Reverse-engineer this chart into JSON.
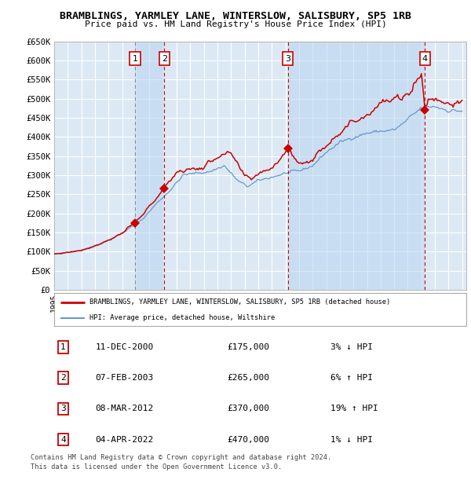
{
  "title": "BRAMBLINGS, YARMLEY LANE, WINTERSLOW, SALISBURY, SP5 1RB",
  "subtitle": "Price paid vs. HM Land Registry's House Price Index (HPI)",
  "ylim": [
    0,
    650000
  ],
  "yticks": [
    0,
    50000,
    100000,
    150000,
    200000,
    250000,
    300000,
    350000,
    400000,
    450000,
    500000,
    550000,
    600000,
    650000
  ],
  "ytick_labels": [
    "£0",
    "£50K",
    "£100K",
    "£150K",
    "£200K",
    "£250K",
    "£300K",
    "£350K",
    "£400K",
    "£450K",
    "£500K",
    "£550K",
    "£600K",
    "£650K"
  ],
  "background_color": "#ffffff",
  "plot_bg_color": "#dce9f5",
  "grid_color": "#ffffff",
  "red_line_color": "#cc0000",
  "blue_line_color": "#6699cc",
  "sale_marker_color": "#cc0000",
  "dashed_line_color": "#cc0000",
  "legend_line1": "BRAMBLINGS, YARMLEY LANE, WINTERSLOW, SALISBURY, SP5 1RB (detached house)",
  "legend_line2": "HPI: Average price, detached house, Wiltshire",
  "sale_dates_yr": [
    2000.94,
    2003.1,
    2012.19,
    2022.26
  ],
  "sale_prices": [
    175000,
    265000,
    370000,
    470000
  ],
  "sales": [
    {
      "num": 1,
      "label": "11-DEC-2000",
      "price": 175000,
      "pct": "3%",
      "dir": "↓"
    },
    {
      "num": 2,
      "label": "07-FEB-2003",
      "price": 265000,
      "pct": "6%",
      "dir": "↑"
    },
    {
      "num": 3,
      "label": "08-MAR-2012",
      "price": 370000,
      "pct": "19%",
      "dir": "↑"
    },
    {
      "num": 4,
      "label": "04-APR-2022",
      "price": 470000,
      "pct": "1%",
      "dir": "↓"
    }
  ],
  "footnote1": "Contains HM Land Registry data © Crown copyright and database right 2024.",
  "footnote2": "This data is licensed under the Open Government Licence v3.0.",
  "hpi_anchors_x": [
    1995.0,
    1996.0,
    1997.0,
    1998.0,
    1999.0,
    2000.0,
    2001.5,
    2002.5,
    2003.5,
    2004.5,
    2005.5,
    2006.5,
    2007.5,
    2008.5,
    2009.2,
    2010.0,
    2011.0,
    2012.0,
    2013.0,
    2014.0,
    2015.0,
    2016.0,
    2017.0,
    2018.0,
    2019.0,
    2020.0,
    2020.5,
    2021.5,
    2022.0,
    2023.0,
    2024.0,
    2024.9
  ],
  "hpi_anchors_y": [
    93000,
    98000,
    104000,
    115000,
    130000,
    148000,
    185000,
    225000,
    260000,
    300000,
    305000,
    310000,
    325000,
    285000,
    270000,
    285000,
    295000,
    305000,
    310000,
    325000,
    360000,
    385000,
    400000,
    410000,
    415000,
    418000,
    430000,
    460000,
    475000,
    480000,
    470000,
    468000
  ],
  "prop_anchors_x": [
    1995.0,
    1996.0,
    1997.0,
    1998.0,
    1999.0,
    2000.0,
    2000.94,
    2001.5,
    2002.5,
    2003.1,
    2004.0,
    2005.0,
    2006.0,
    2007.0,
    2008.0,
    2009.0,
    2009.5,
    2010.0,
    2011.0,
    2012.19,
    2013.0,
    2014.0,
    2015.0,
    2016.0,
    2017.0,
    2018.0,
    2019.0,
    2020.0,
    2021.0,
    2021.5,
    2022.0,
    2022.26,
    2022.5,
    2023.0,
    2024.0,
    2024.9
  ],
  "prop_anchors_y": [
    93000,
    98000,
    104000,
    115000,
    130000,
    148000,
    175000,
    195000,
    240000,
    265000,
    310000,
    315000,
    320000,
    350000,
    355000,
    295000,
    290000,
    305000,
    320000,
    370000,
    330000,
    340000,
    380000,
    415000,
    440000,
    460000,
    490000,
    495000,
    510000,
    545000,
    565000,
    470000,
    500000,
    500000,
    490000,
    485000
  ]
}
